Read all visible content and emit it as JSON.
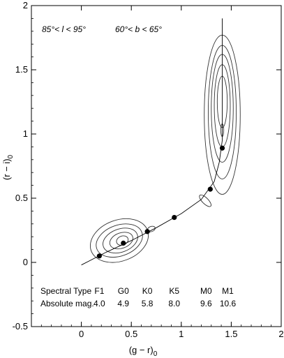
{
  "chart_data": {
    "type": "scatter",
    "title": "",
    "xlabel": "(g − r)",
    "xlabel_sub": "0",
    "ylabel": "(r − i)",
    "ylabel_sub": "0",
    "xlim": [
      -0.5,
      2.0
    ],
    "ylim": [
      -0.5,
      2.0
    ],
    "xticks": [
      0,
      0.5,
      1,
      1.5,
      2
    ],
    "xtick_labels": [
      "0",
      "0.5",
      "1",
      "1.5",
      "2"
    ],
    "yticks": [
      -0.5,
      0,
      0.5,
      1,
      1.5,
      2
    ],
    "ytick_labels": [
      "-0.5",
      "0",
      "0.5",
      "1",
      "1.5",
      "2"
    ],
    "grid": false,
    "annotations": {
      "l_range": "85°< l < 95°",
      "b_range": "60°< b < 65°"
    },
    "points": [
      {
        "x": 0.18,
        "y": 0.05
      },
      {
        "x": 0.42,
        "y": 0.15
      },
      {
        "x": 0.66,
        "y": 0.24
      },
      {
        "x": 0.93,
        "y": 0.35
      },
      {
        "x": 1.29,
        "y": 0.57
      },
      {
        "x": 1.41,
        "y": 0.89
      }
    ],
    "locus_line": [
      [
        0.0,
        -0.02
      ],
      [
        0.25,
        0.08
      ],
      [
        0.5,
        0.17
      ],
      [
        0.75,
        0.27
      ],
      [
        1.0,
        0.38
      ],
      [
        1.2,
        0.49
      ],
      [
        1.33,
        0.63
      ],
      [
        1.38,
        0.78
      ],
      [
        1.41,
        0.95
      ],
      [
        1.41,
        1.9
      ]
    ],
    "contours": [
      {
        "cx": 0.38,
        "cy": 0.17,
        "rx": 0.3,
        "ry": 0.16,
        "rot": 20
      },
      {
        "cx": 0.38,
        "cy": 0.17,
        "rx": 0.24,
        "ry": 0.12,
        "rot": 20
      },
      {
        "cx": 0.39,
        "cy": 0.17,
        "rx": 0.18,
        "ry": 0.09,
        "rot": 20
      },
      {
        "cx": 0.4,
        "cy": 0.17,
        "rx": 0.12,
        "ry": 0.06,
        "rot": 20
      },
      {
        "cx": 0.41,
        "cy": 0.17,
        "rx": 0.06,
        "ry": 0.035,
        "rot": 20
      },
      {
        "cx": 1.41,
        "cy": 1.15,
        "rx": 0.18,
        "ry": 0.62,
        "rot": 0
      },
      {
        "cx": 1.41,
        "cy": 1.17,
        "rx": 0.14,
        "ry": 0.52,
        "rot": 0
      },
      {
        "cx": 1.41,
        "cy": 1.2,
        "rx": 0.11,
        "ry": 0.42,
        "rot": 0
      },
      {
        "cx": 1.41,
        "cy": 1.22,
        "rx": 0.08,
        "ry": 0.32,
        "rot": 0
      },
      {
        "cx": 1.41,
        "cy": 1.25,
        "rx": 0.05,
        "ry": 0.2,
        "rot": 0
      },
      {
        "cx": 1.41,
        "cy": 1.03,
        "rx": 0.015,
        "ry": 0.05,
        "rot": 0
      },
      {
        "cx": 0.7,
        "cy": 0.26,
        "rx": 0.04,
        "ry": 0.02,
        "rot": 20
      },
      {
        "cx": 1.24,
        "cy": 0.48,
        "rx": 0.03,
        "ry": 0.06,
        "rot": 45
      }
    ],
    "spectral_table": {
      "row_labels": [
        "Spectral Type",
        "Absolute mag."
      ],
      "columns": [
        {
          "x": 0.18,
          "type": "F1",
          "mag": "4.0"
        },
        {
          "x": 0.42,
          "type": "G0",
          "mag": "4.9"
        },
        {
          "x": 0.66,
          "type": "K0",
          "mag": "5.8"
        },
        {
          "x": 0.93,
          "type": "K5",
          "mag": "8.0"
        },
        {
          "x": 1.29,
          "type": "M0",
          "mag": "9.6"
        },
        {
          "x": 1.41,
          "type": "M1",
          "mag": "10.6"
        }
      ]
    }
  }
}
